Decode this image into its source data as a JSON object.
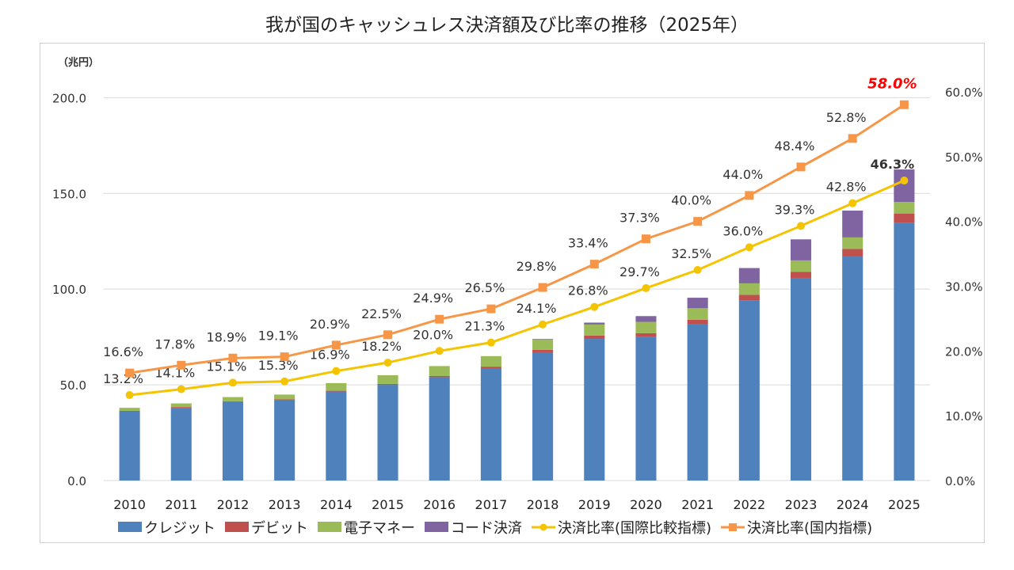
{
  "title": "我が国のキャッシュレス決済額及び比率の推移（2025年）",
  "chart_data": {
    "type": "bar",
    "stacked": true,
    "categories": [
      "2010",
      "2011",
      "2012",
      "2013",
      "2014",
      "2015",
      "2016",
      "2017",
      "2018",
      "2019",
      "2020",
      "2021",
      "2022",
      "2023",
      "2024",
      "2025"
    ],
    "y_unit_label": "（兆円）",
    "ylim": [
      0,
      220
    ],
    "y_ticks": [
      "0.0",
      "50.0",
      "100.0",
      "150.0",
      "200.0"
    ],
    "y2lim": [
      0,
      65
    ],
    "y2_ticks": [
      "0.0%",
      "10.0%",
      "20.0%",
      "30.0%",
      "40.0%",
      "50.0%",
      "60.0%"
    ],
    "grid": true,
    "legend_position": "bottom",
    "series": [
      {
        "name": "クレジット",
        "kind": "bar",
        "color": "#4f81bd",
        "values": [
          36.0,
          38.0,
          41.0,
          42.0,
          46.5,
          50.0,
          54.0,
          58.5,
          67.0,
          74.0,
          75.0,
          81.5,
          94.0,
          105.5,
          117.0,
          134.5
        ]
      },
      {
        "name": "デビット",
        "kind": "bar",
        "color": "#c0504d",
        "values": [
          0.4,
          0.4,
          0.4,
          0.4,
          0.4,
          0.5,
          0.6,
          1.0,
          1.3,
          1.7,
          2.0,
          2.5,
          3.0,
          3.5,
          4.0,
          5.0
        ]
      },
      {
        "name": "電子マネー",
        "kind": "bar",
        "color": "#9bbb59",
        "values": [
          1.6,
          1.9,
          2.2,
          2.5,
          4.0,
          4.5,
          5.2,
          5.5,
          5.5,
          5.8,
          5.9,
          6.0,
          6.0,
          6.0,
          6.0,
          6.0
        ]
      },
      {
        "name": "コード決済",
        "kind": "bar",
        "color": "#8064a2",
        "values": [
          0,
          0,
          0,
          0,
          0,
          0,
          0,
          0,
          0.2,
          1.0,
          3.0,
          5.5,
          8.0,
          11.0,
          14.0,
          17.0
        ]
      },
      {
        "name": "決済比率(国際比較指標)",
        "kind": "line",
        "axis": "right",
        "color": "#f5c400",
        "values": [
          13.2,
          14.1,
          15.1,
          15.3,
          16.9,
          18.2,
          20.0,
          21.3,
          24.1,
          26.8,
          29.7,
          32.5,
          36.0,
          39.3,
          42.8,
          46.3
        ],
        "labels": [
          "13.2%",
          "14.1%",
          "15.1%",
          "15.3%",
          "16.9%",
          "18.2%",
          "20.0%",
          "21.3%",
          "24.1%",
          "26.8%",
          "29.7%",
          "32.5%",
          "36.0%",
          "39.3%",
          "42.8%",
          "46.3%"
        ]
      },
      {
        "name": "決済比率(国内指標)",
        "kind": "line",
        "axis": "right",
        "color": "#f79646",
        "values": [
          16.6,
          17.8,
          18.9,
          19.1,
          20.9,
          22.5,
          24.9,
          26.5,
          29.8,
          33.4,
          37.3,
          40.0,
          44.0,
          48.4,
          52.8,
          58.0
        ],
        "labels": [
          "16.6%",
          "17.8%",
          "18.9%",
          "19.1%",
          "20.9%",
          "22.5%",
          "24.9%",
          "26.5%",
          "29.8%",
          "33.4%",
          "37.3%",
          "40.0%",
          "44.0%",
          "48.4%",
          "52.8%",
          "58.0%"
        ]
      }
    ],
    "highlight_color": "#ff0000"
  }
}
